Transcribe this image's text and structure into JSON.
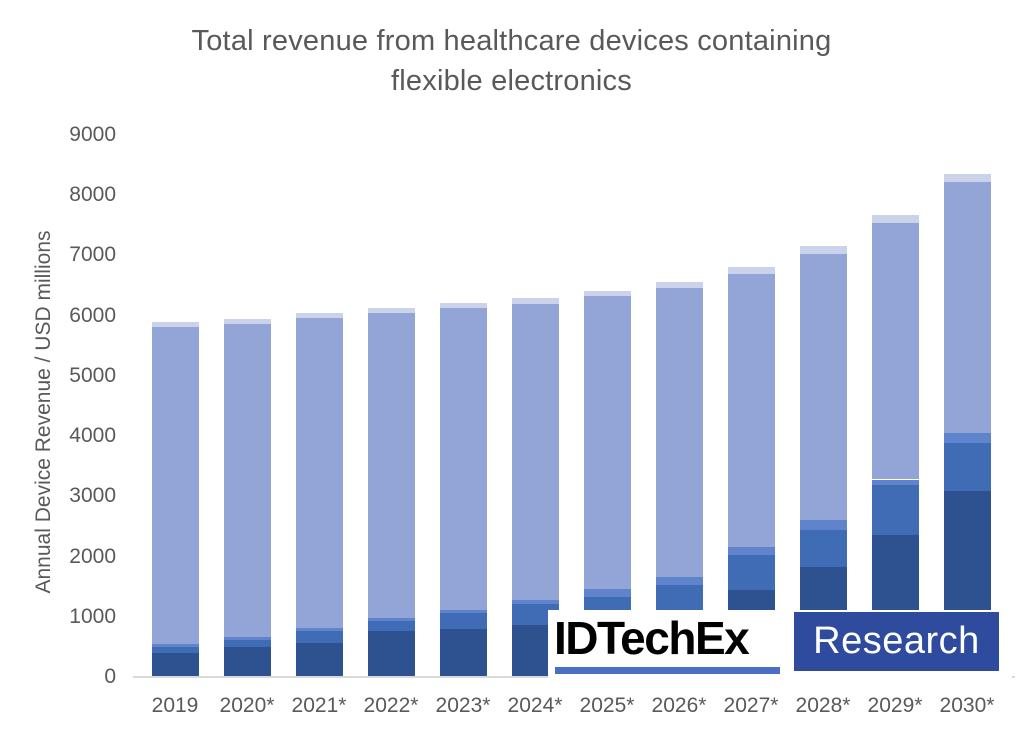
{
  "chart_data": {
    "type": "bar",
    "stacked": true,
    "title": "Total revenue from healthcare devices containing flexible electronics",
    "title_lines": [
      "Total revenue from healthcare devices containing",
      "flexible electronics"
    ],
    "xlabel": "",
    "ylabel": "Annual Device Revenue / USD millions",
    "ylim": [
      0,
      9000
    ],
    "y_tick_step": 1000,
    "y_ticks": [
      "0",
      "1000",
      "2000",
      "3000",
      "4000",
      "5000",
      "6000",
      "7000",
      "8000",
      "9000"
    ],
    "grid": false,
    "legend": "none",
    "categories": [
      "2019",
      "2020*",
      "2021*",
      "2022*",
      "2023*",
      "2024*",
      "2025*",
      "2026*",
      "2027*",
      "2028*",
      "2029*",
      "2030*"
    ],
    "series": [
      {
        "name": "dark-navy-segment",
        "color": "#2E528F",
        "values": [
          400,
          500,
          560,
          760,
          800,
          860,
          950,
          1050,
          1440,
          1830,
          2360,
          3090
        ]
      },
      {
        "name": "medium-blue-segment",
        "color": "#3F6CB5",
        "values": [
          100,
          115,
          200,
          170,
          265,
          350,
          380,
          480,
          590,
          615,
          830,
          800
        ]
      },
      {
        "name": "light-medium-blue-segment",
        "color": "#5F84CC",
        "values": [
          50,
          50,
          55,
          50,
          50,
          70,
          130,
          130,
          130,
          165,
          90,
          170
        ]
      },
      {
        "name": "periwinkle-segment",
        "color": "#93A5D7",
        "values": [
          5260,
          5205,
          5145,
          5060,
          5005,
          4920,
          4860,
          4800,
          4530,
          4420,
          4260,
          4160
        ]
      },
      {
        "name": "pale-blue-cap-segment",
        "color": "#CBD3EA",
        "values": [
          80,
          70,
          80,
          80,
          90,
          90,
          90,
          100,
          120,
          120,
          130,
          130
        ]
      }
    ],
    "totals": [
      5890,
      5940,
      6040,
      6120,
      6210,
      6290,
      6410,
      6560,
      6810,
      7150,
      7670,
      8350
    ]
  },
  "logo": {
    "wordmark": "IDTechEx",
    "research_label": "Research",
    "wordmark_color": "#000000",
    "underline_color": "#4A6FC4",
    "box_color": "#2E4B9D"
  },
  "colors": {
    "title_text": "#595959",
    "axis_text": "#595959",
    "axis_line": "#D9D9D9",
    "background": "#FFFFFF"
  }
}
